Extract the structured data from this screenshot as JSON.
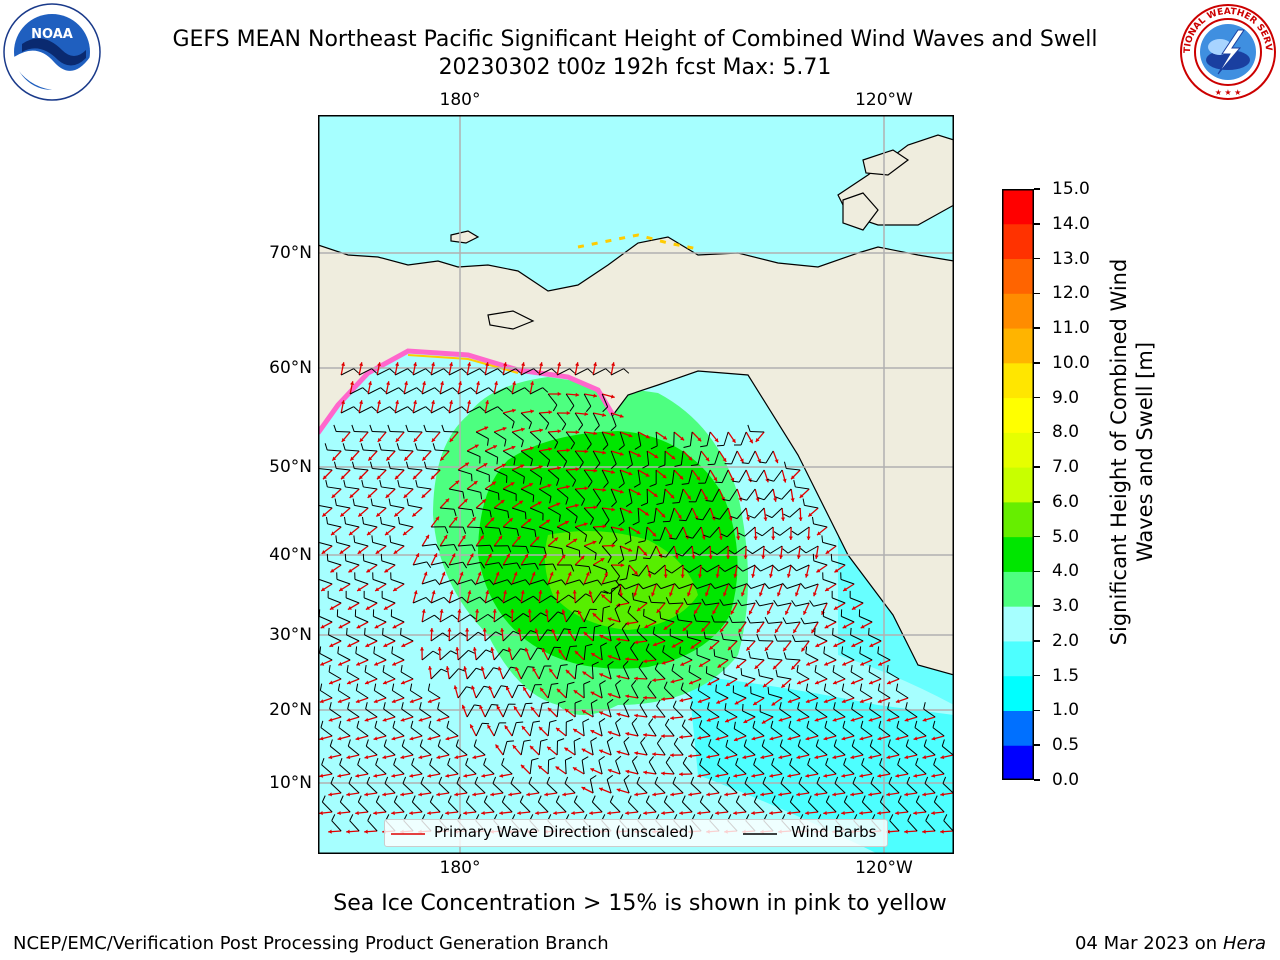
{
  "title": {
    "line1": "GEFS MEAN Northeast Pacific Significant Height of Combined Wind Waves and Swell",
    "line2": "20230302 t00z 192h fcst   Max: 5.71"
  },
  "logos": {
    "left": {
      "text": "NOAA",
      "icon": "noaa-logo"
    },
    "right": {
      "text": "NATIONAL WEATHER SERVICE",
      "icon": "nws-logo"
    }
  },
  "map": {
    "lat_labels": [
      "70°N",
      "60°N",
      "50°N",
      "40°N",
      "30°N",
      "20°N",
      "10°N"
    ],
    "lon_labels_top": [
      "180°",
      "120°W"
    ],
    "lon_labels_bottom": [
      "180°",
      "120°W"
    ],
    "colors": {
      "land": "#efedde",
      "ocean_light": "#a6ffff",
      "ocean_mid": "#4dffff",
      "waves_3": "#4dff80",
      "waves_4": "#00e600",
      "waves_5": "#66ee00",
      "wave_arrow": "#e00000",
      "wind_barb": "#000000",
      "ice": [
        "#ff66cc",
        "#ffcc00"
      ],
      "gridline": "#b0b0b0"
    },
    "legend": {
      "wave_label": "Primary Wave Direction (unscaled)",
      "wind_label": "Wind Barbs"
    }
  },
  "colorbar": {
    "title": "Significant Height of Combined Wind Waves and Swell [m]",
    "ticks": [
      "0.0",
      "0.5",
      "1.0",
      "1.5",
      "2.0",
      "3.0",
      "4.0",
      "5.0",
      "6.0",
      "7.0",
      "8.0",
      "9.0",
      "10.0",
      "11.0",
      "12.0",
      "13.0",
      "14.0",
      "15.0"
    ],
    "colors": [
      "#0000ff",
      "#0070ff",
      "#00ffff",
      "#4dffff",
      "#a6ffff",
      "#4dff80",
      "#00e600",
      "#66ee00",
      "#c8ff00",
      "#e6ff00",
      "#ffff00",
      "#ffe600",
      "#ffb400",
      "#ff8c00",
      "#ff6400",
      "#ff3200",
      "#ff0000"
    ]
  },
  "caption": "Sea Ice Concentration > 15% is shown in pink to yellow",
  "footer": {
    "left": "NCEP/EMC/Verification Post Processing Product Generation Branch",
    "date": "04 Mar 2023 on",
    "host": "Hera"
  }
}
